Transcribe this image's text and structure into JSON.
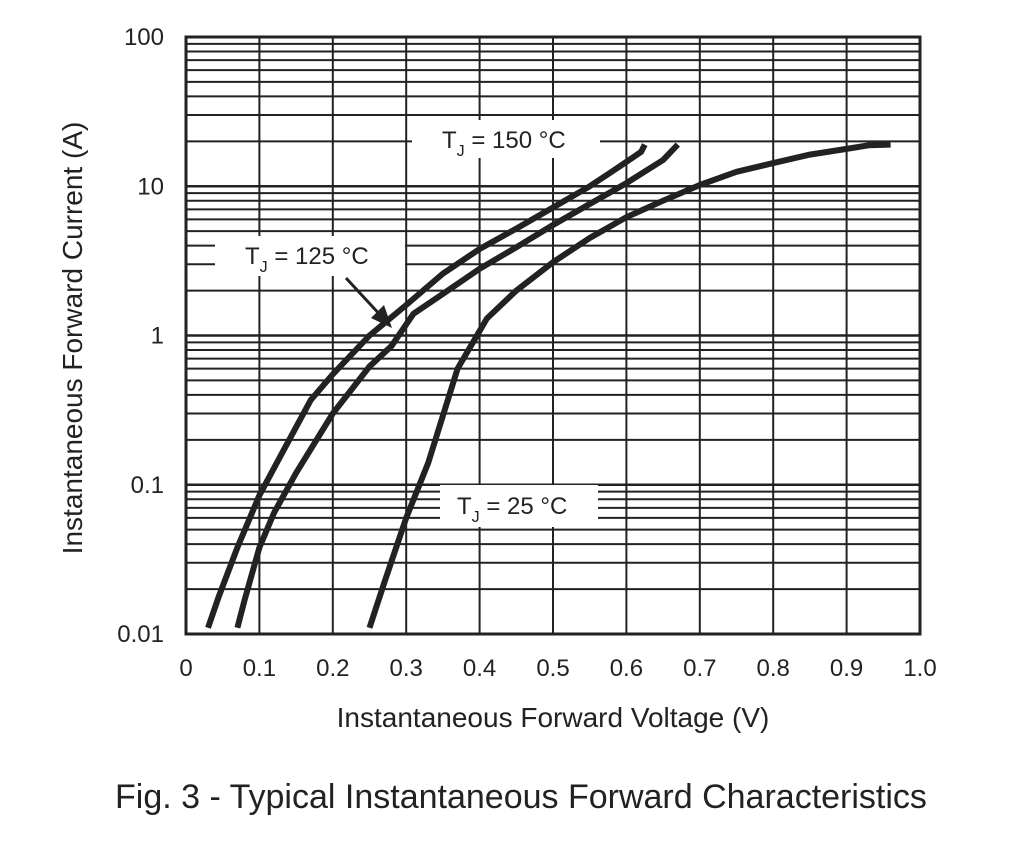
{
  "chart_data": {
    "type": "line",
    "title": "",
    "caption": "Fig. 3 - Typical Instantaneous Forward Characteristics",
    "xlabel": "Instantaneous Forward Voltage (V)",
    "ylabel": "Instantaneous Forward Current (A)",
    "xlim": [
      0,
      1.0
    ],
    "ylim": [
      0.01,
      100
    ],
    "yscale": "log",
    "grid": true,
    "x_ticks": [
      0,
      0.1,
      0.2,
      0.3,
      0.4,
      0.5,
      0.6,
      0.7,
      0.8,
      0.9,
      1.0
    ],
    "x_tick_labels": [
      "0",
      "0.1",
      "0.2",
      "0.3",
      "0.4",
      "0.5",
      "0.6",
      "0.7",
      "0.8",
      "0.9",
      "1.0"
    ],
    "y_ticks": [
      0.01,
      0.1,
      1,
      10,
      100
    ],
    "y_tick_labels": [
      "0.01",
      "0.1",
      "1",
      "10",
      "100"
    ],
    "series": [
      {
        "label_main": "T",
        "label_sub": "J",
        "label_rest": " = 150 °C",
        "points": [
          [
            0.03,
            0.011
          ],
          [
            0.045,
            0.018
          ],
          [
            0.07,
            0.038
          ],
          [
            0.1,
            0.085
          ],
          [
            0.13,
            0.16
          ],
          [
            0.17,
            0.37
          ],
          [
            0.2,
            0.55
          ],
          [
            0.25,
            1.0
          ],
          [
            0.3,
            1.6
          ],
          [
            0.35,
            2.6
          ],
          [
            0.4,
            3.8
          ],
          [
            0.45,
            5.2
          ],
          [
            0.5,
            7.2
          ],
          [
            0.55,
            10
          ],
          [
            0.58,
            12.5
          ],
          [
            0.62,
            17
          ],
          [
            0.625,
            19
          ]
        ]
      },
      {
        "label_main": "T",
        "label_sub": "J",
        "label_rest": " = 125 °C",
        "points": [
          [
            0.07,
            0.011
          ],
          [
            0.08,
            0.017
          ],
          [
            0.1,
            0.038
          ],
          [
            0.12,
            0.065
          ],
          [
            0.15,
            0.12
          ],
          [
            0.2,
            0.3
          ],
          [
            0.25,
            0.62
          ],
          [
            0.28,
            0.85
          ],
          [
            0.31,
            1.4
          ],
          [
            0.35,
            1.9
          ],
          [
            0.4,
            2.8
          ],
          [
            0.45,
            3.9
          ],
          [
            0.5,
            5.5
          ],
          [
            0.55,
            7.6
          ],
          [
            0.6,
            10.5
          ],
          [
            0.65,
            15
          ],
          [
            0.67,
            19
          ]
        ]
      },
      {
        "label_main": "T",
        "label_sub": "J",
        "label_rest": " = 25 °C",
        "points": [
          [
            0.25,
            0.011
          ],
          [
            0.27,
            0.022
          ],
          [
            0.3,
            0.06
          ],
          [
            0.33,
            0.14
          ],
          [
            0.37,
            0.6
          ],
          [
            0.41,
            1.3
          ],
          [
            0.45,
            2.0
          ],
          [
            0.5,
            3.1
          ],
          [
            0.55,
            4.5
          ],
          [
            0.6,
            6.2
          ],
          [
            0.65,
            8.0
          ],
          [
            0.7,
            10.2
          ],
          [
            0.75,
            12.5
          ],
          [
            0.8,
            14.3
          ],
          [
            0.85,
            16.3
          ],
          [
            0.9,
            17.8
          ],
          [
            0.93,
            18.8
          ],
          [
            0.96,
            19
          ]
        ]
      }
    ]
  }
}
